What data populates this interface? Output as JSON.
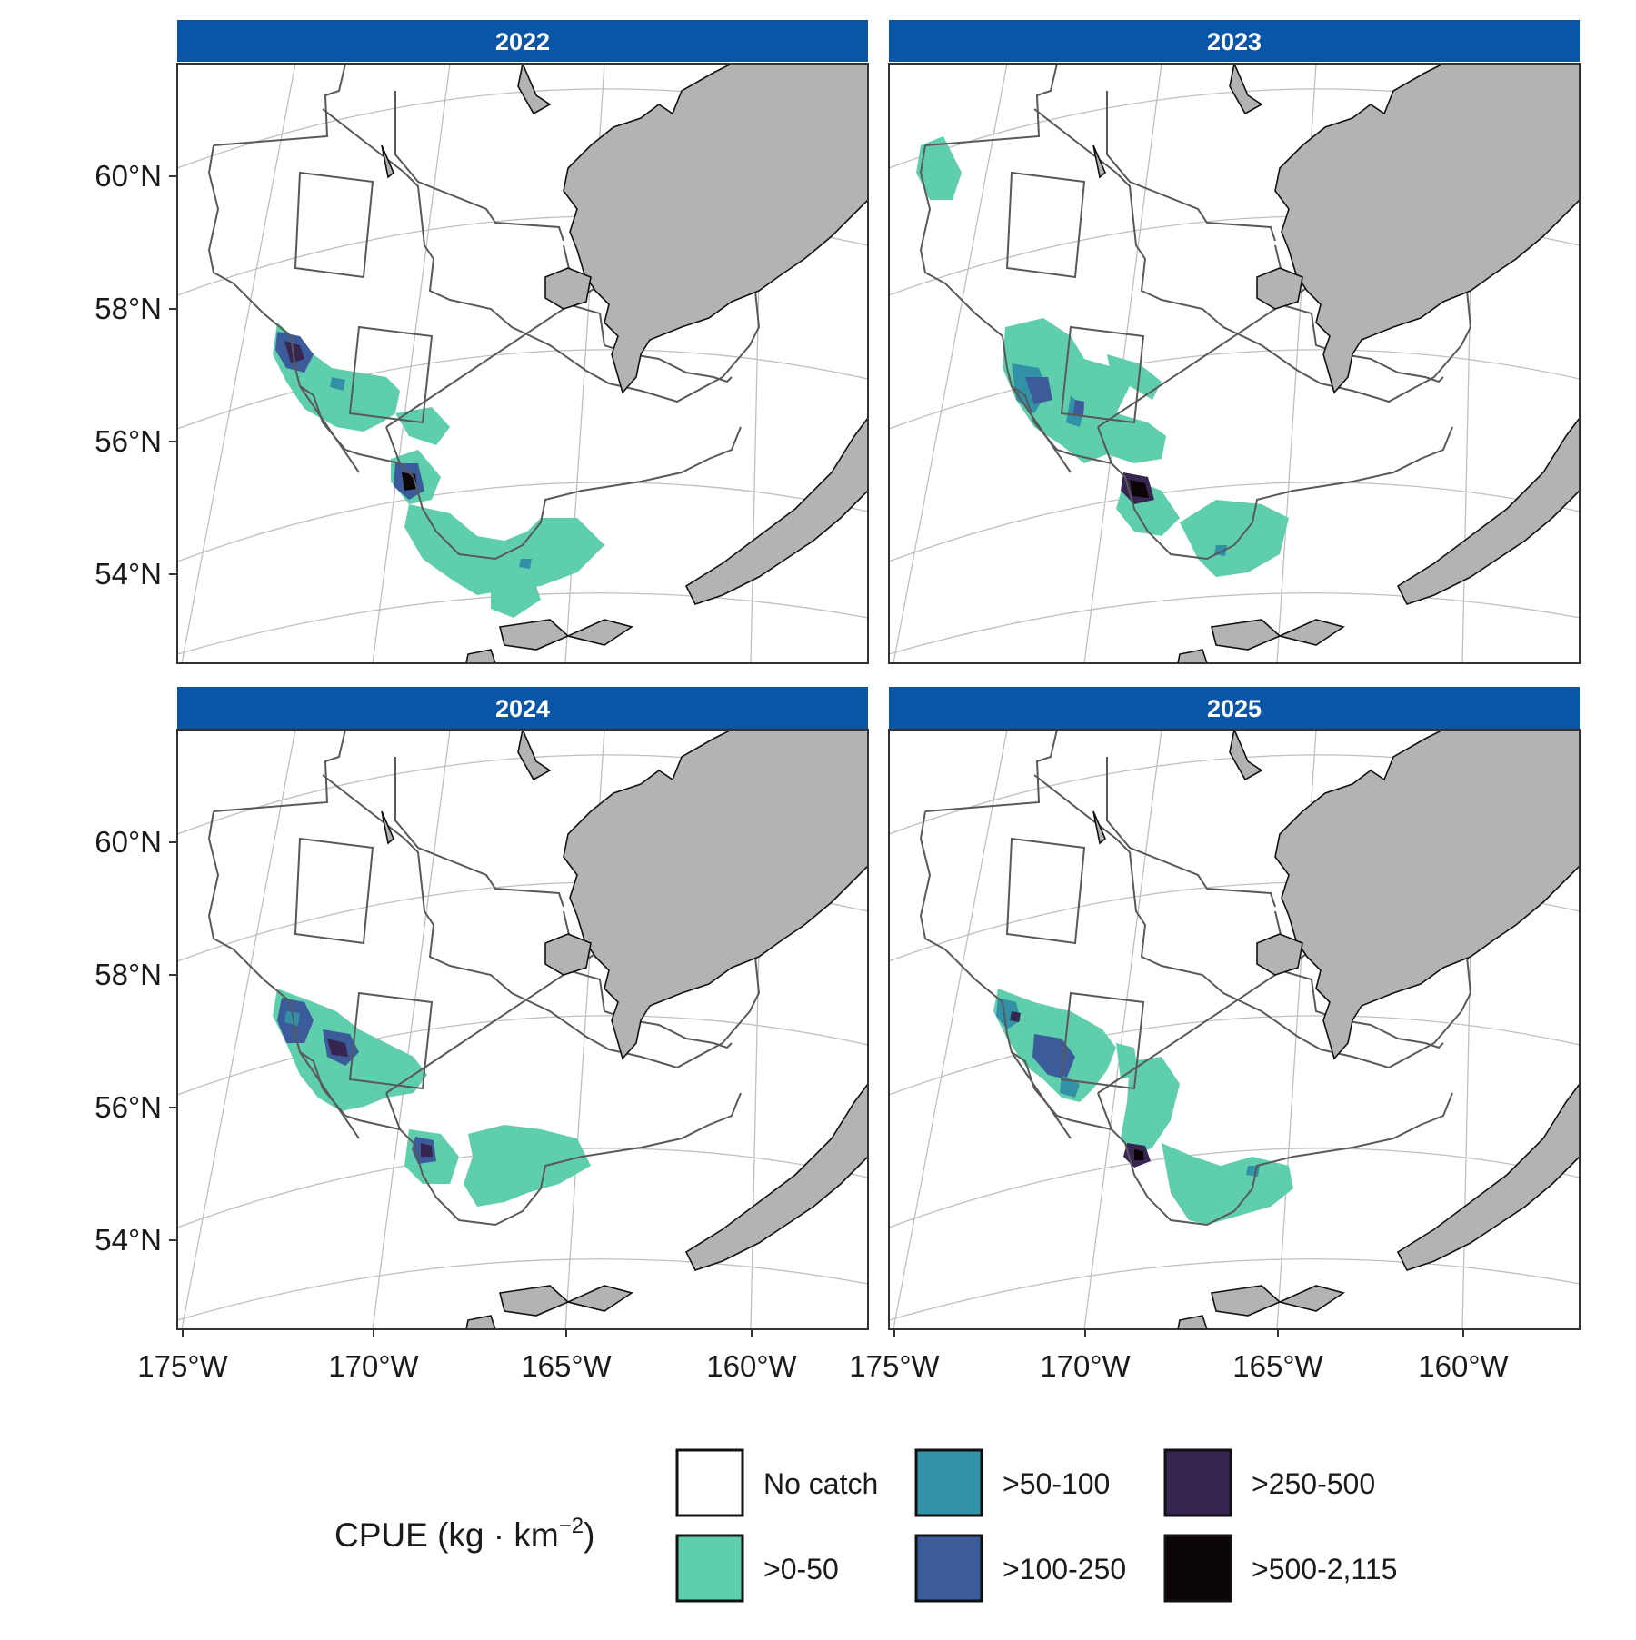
{
  "panels": [
    {
      "year": "2022"
    },
    {
      "year": "2023"
    },
    {
      "year": "2024"
    },
    {
      "year": "2025"
    }
  ],
  "axis": {
    "lat_labels": [
      "60°N",
      "58°N",
      "56°N",
      "54°N"
    ],
    "lon_labels": [
      "175°W",
      "170°W",
      "165°W",
      "160°W"
    ]
  },
  "legend": {
    "title_prefix": "CPUE (kg · km",
    "title_exponent": "−2",
    "title_suffix": ")",
    "items": [
      {
        "label": "No catch",
        "color": "#ffffff"
      },
      {
        "label": ">0-50",
        "color": "#5fcead"
      },
      {
        "label": ">50-100",
        "color": "#3291a6"
      },
      {
        "label": ">100-250",
        "color": "#3b5b9b"
      },
      {
        "label": ">250-500",
        "color": "#382652"
      },
      {
        "label": ">500-2,115",
        "color": "#0b0507"
      }
    ]
  },
  "colors": {
    "strip": "#0a55a6",
    "land": "#b3b3b3",
    "grid": "#bfbfbf",
    "stratum_line": "#595959"
  }
}
